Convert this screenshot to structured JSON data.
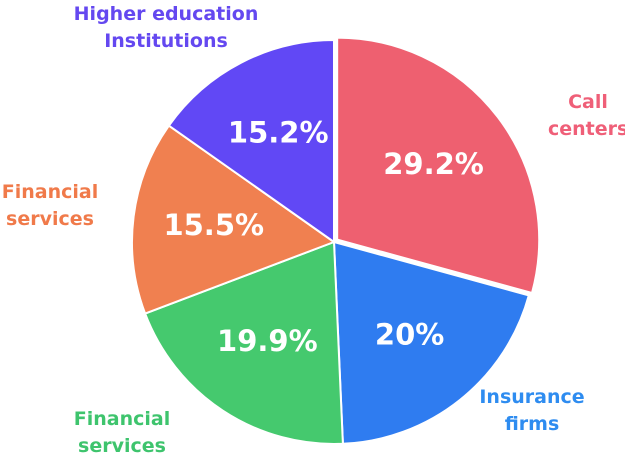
{
  "chart_data": {
    "type": "pie",
    "categories": [
      "Call centers",
      "Insurance firms",
      "Financial services",
      "Financial services",
      "Higher education Institutions"
    ],
    "values": [
      29.2,
      20,
      19.9,
      15.5,
      15.2
    ],
    "value_labels": [
      "29.2%",
      "20%",
      "19.9%",
      "15.5%",
      "15.2%"
    ],
    "colors": [
      "#ee6070",
      "#2f7cf0",
      "#45c96e",
      "#f08050",
      "#6148f5"
    ],
    "label_colors": [
      "#ef5f78",
      "#2e8cf0",
      "#3ec46d",
      "#f07a4a",
      "#6448f0"
    ]
  }
}
